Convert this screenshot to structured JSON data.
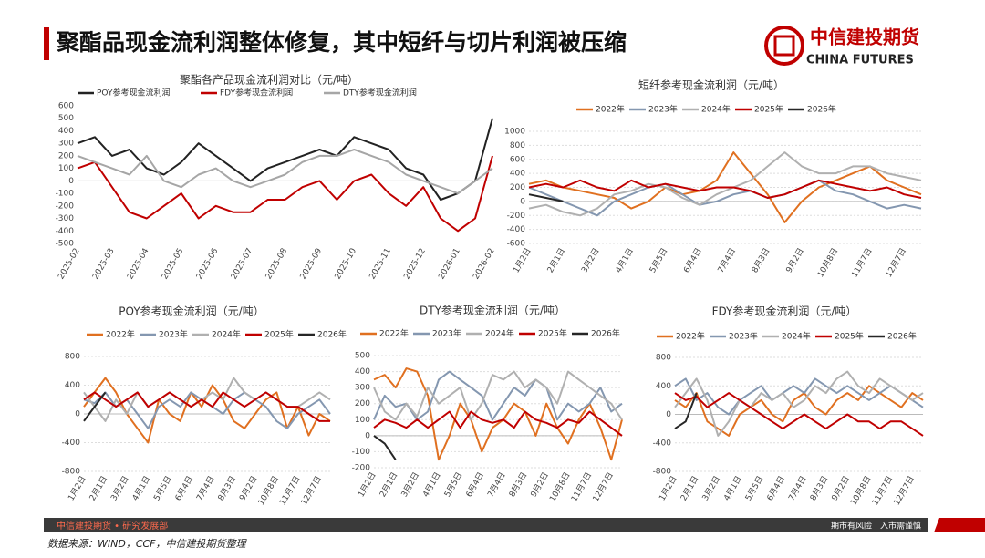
{
  "slide": {
    "title": "聚酯品现金流利润整体修复，其中短纤与切片利润被压缩",
    "logo_cn": "中信建投期货",
    "logo_en": "CHINA FUTURES",
    "footer_left": "中信建投期货 • 研究发展部",
    "footer_right": "期市有风险　入市需谨慎",
    "source": "数据来源：WIND，CCF，中信建投期货整理"
  },
  "chart_data": [
    {
      "type": "line",
      "title": "聚酯各产品现金流利润对比（元/吨）",
      "categories": [
        "2025-02",
        null,
        "2025-03",
        null,
        "2025-04",
        null,
        "2025-05",
        null,
        "2025-06",
        null,
        "2025-07",
        null,
        "2025-08",
        null,
        "2025-09",
        null,
        "2025-10",
        null,
        "2025-11",
        null,
        "2025-12",
        null,
        "2026-01",
        null,
        "2026-02"
      ],
      "series": [
        {
          "name": "POY参考现金流利润",
          "color": "#222222",
          "values": [
            300,
            350,
            200,
            250,
            100,
            50,
            150,
            300,
            200,
            100,
            0,
            100,
            150,
            200,
            250,
            200,
            350,
            300,
            250,
            100,
            50,
            -150,
            -100,
            0,
            500
          ]
        },
        {
          "name": "FDY参考现金流利润",
          "color": "#c00000",
          "values": [
            100,
            150,
            -50,
            -250,
            -300,
            -200,
            -100,
            -300,
            -200,
            -250,
            -250,
            -150,
            -150,
            -50,
            0,
            -150,
            0,
            50,
            -100,
            -200,
            -50,
            -300,
            -400,
            -300,
            200
          ]
        },
        {
          "name": "DTY参考现金流利润",
          "color": "#a6a6a6",
          "values": [
            200,
            150,
            100,
            50,
            200,
            0,
            -50,
            50,
            100,
            0,
            -50,
            0,
            50,
            150,
            200,
            200,
            250,
            200,
            150,
            50,
            0,
            -50,
            -100,
            0,
            100
          ]
        }
      ],
      "ylim": [
        -500,
        600
      ],
      "yticks": [
        -500,
        -400,
        -300,
        -200,
        -100,
        0,
        100,
        200,
        300,
        400,
        500,
        600
      ],
      "grid": false
    },
    {
      "type": "line",
      "title": "短纤参考现金流利润（元/吨）",
      "categories": [
        "1月2日",
        null,
        "2月1日",
        null,
        "3月2日",
        null,
        "4月1日",
        null,
        "5月5日",
        null,
        "6月4日",
        null,
        "7月4日",
        null,
        "8月3日",
        null,
        "9月2日",
        null,
        "10月8日",
        null,
        "11月7日",
        null,
        "12月7日",
        null
      ],
      "series": [
        {
          "name": "2022年",
          "color": "#e07020",
          "values": [
            250,
            300,
            200,
            150,
            100,
            50,
            -100,
            0,
            200,
            100,
            150,
            300,
            700,
            400,
            100,
            -300,
            0,
            200,
            300,
            400,
            500,
            300,
            200,
            100
          ]
        },
        {
          "name": "2023年",
          "color": "#8497b0",
          "values": [
            200,
            100,
            0,
            -100,
            -200,
            0,
            100,
            200,
            250,
            100,
            -50,
            0,
            100,
            150,
            50,
            100,
            200,
            300,
            150,
            100,
            0,
            -100,
            -50,
            -100
          ]
        },
        {
          "name": "2024年",
          "color": "#b0b0b0",
          "values": [
            -100,
            -50,
            -150,
            -200,
            -100,
            100,
            150,
            250,
            200,
            50,
            -50,
            100,
            200,
            300,
            500,
            700,
            500,
            400,
            400,
            500,
            500,
            400,
            350,
            300
          ]
        },
        {
          "name": "2025年",
          "color": "#c00000",
          "values": [
            200,
            250,
            200,
            300,
            200,
            150,
            300,
            200,
            250,
            200,
            150,
            200,
            200,
            150,
            50,
            100,
            200,
            300,
            250,
            200,
            150,
            200,
            100,
            50
          ]
        },
        {
          "name": "2026年",
          "color": "#262626",
          "values": [
            100,
            50,
            0,
            null,
            null,
            null,
            null,
            null,
            null,
            null,
            null,
            null,
            null,
            null,
            null,
            null,
            null,
            null,
            null,
            null,
            null,
            null,
            null,
            null
          ]
        }
      ],
      "ylim": [
        -600,
        1000
      ],
      "yticks": [
        -600,
        -400,
        -200,
        0,
        200,
        400,
        600,
        800,
        1000
      ],
      "grid": true
    },
    {
      "type": "line",
      "title": "POY参考现金流利润（元/吨）",
      "categories": [
        "1月2日",
        null,
        "2月1日",
        null,
        "3月2日",
        null,
        "4月1日",
        null,
        "5月5日",
        null,
        "6月4日",
        null,
        "7月4日",
        null,
        "8月3日",
        null,
        "9月2日",
        null,
        "10月8日",
        null,
        "11月7日",
        null,
        "12月7日",
        null
      ],
      "series": [
        {
          "name": "2022年",
          "color": "#e07020",
          "values": [
            100,
            300,
            500,
            300,
            0,
            -200,
            -400,
            200,
            0,
            -100,
            300,
            100,
            400,
            200,
            -100,
            -200,
            0,
            200,
            300,
            -200,
            100,
            -300,
            0,
            -100
          ]
        },
        {
          "name": "2023年",
          "color": "#8497b0",
          "values": [
            200,
            150,
            300,
            100,
            200,
            0,
            -200,
            100,
            200,
            100,
            300,
            200,
            100,
            0,
            200,
            300,
            200,
            100,
            -100,
            -200,
            0,
            100,
            200,
            0
          ]
        },
        {
          "name": "2024年",
          "color": "#b0b0b0",
          "values": [
            300,
            100,
            -100,
            200,
            0,
            300,
            100,
            200,
            300,
            200,
            100,
            200,
            300,
            200,
            500,
            300,
            200,
            300,
            200,
            100,
            100,
            200,
            300,
            200
          ]
        },
        {
          "name": "2025年",
          "color": "#c00000",
          "values": [
            200,
            300,
            200,
            100,
            200,
            300,
            100,
            200,
            300,
            200,
            100,
            200,
            100,
            300,
            200,
            100,
            200,
            300,
            200,
            100,
            100,
            0,
            -100,
            -100
          ]
        },
        {
          "name": "2026年",
          "color": "#262626",
          "values": [
            -100,
            100,
            300,
            null,
            null,
            null,
            null,
            null,
            null,
            null,
            null,
            null,
            null,
            null,
            null,
            null,
            null,
            null,
            null,
            null,
            null,
            null,
            null,
            null
          ]
        }
      ],
      "ylim": [
        -800,
        800
      ],
      "yticks": [
        -800,
        -400,
        0,
        400,
        800
      ],
      "grid": true
    },
    {
      "type": "line",
      "title": "DTY参考现金流利润（元/吨）",
      "categories": [
        "1月2日",
        null,
        "2月1日",
        null,
        "3月2日",
        null,
        "4月1日",
        null,
        "5月5日",
        null,
        "6月4日",
        null,
        "7月4日",
        null,
        "8月3日",
        null,
        "9月2日",
        null,
        "10月8日",
        null,
        "11月7日",
        null,
        "12月7日",
        null
      ],
      "series": [
        {
          "name": "2022年",
          "color": "#e07020",
          "values": [
            350,
            380,
            300,
            420,
            400,
            250,
            -150,
            0,
            200,
            100,
            -100,
            50,
            100,
            200,
            150,
            0,
            200,
            50,
            -50,
            100,
            200,
            50,
            -150,
            100
          ]
        },
        {
          "name": "2023年",
          "color": "#8497b0",
          "values": [
            100,
            250,
            180,
            200,
            100,
            150,
            350,
            400,
            350,
            300,
            250,
            100,
            200,
            300,
            250,
            350,
            300,
            100,
            200,
            150,
            200,
            300,
            150,
            200
          ]
        },
        {
          "name": "2024年",
          "color": "#b0b0b0",
          "values": [
            300,
            150,
            100,
            200,
            120,
            300,
            200,
            250,
            300,
            100,
            200,
            380,
            350,
            400,
            300,
            350,
            300,
            200,
            400,
            350,
            300,
            250,
            200,
            100
          ]
        },
        {
          "name": "2025年",
          "color": "#c00000",
          "values": [
            50,
            100,
            80,
            50,
            100,
            50,
            100,
            150,
            50,
            150,
            100,
            80,
            100,
            50,
            150,
            100,
            80,
            50,
            100,
            80,
            150,
            100,
            50,
            0
          ]
        },
        {
          "name": "2026年",
          "color": "#262626",
          "values": [
            0,
            -50,
            -150,
            null,
            null,
            null,
            null,
            null,
            null,
            null,
            null,
            null,
            null,
            null,
            null,
            null,
            null,
            null,
            null,
            null,
            null,
            null,
            null,
            null
          ]
        }
      ],
      "ylim": [
        -200,
        500
      ],
      "yticks": [
        -200,
        -100,
        0,
        100,
        200,
        300,
        400,
        500
      ],
      "grid": true
    },
    {
      "type": "line",
      "title": "FDY参考现金流利润（元/吨）",
      "categories": [
        "1月2日",
        null,
        "2月1日",
        null,
        "3月2日",
        null,
        "4月1日",
        null,
        "5月5日",
        null,
        "6月4日",
        null,
        "7月4日",
        null,
        "8月3日",
        null,
        "9月2日",
        null,
        "10月8日",
        null,
        "11月7日",
        null,
        "12月7日",
        null
      ],
      "series": [
        {
          "name": "2022年",
          "color": "#e07020",
          "values": [
            200,
            100,
            300,
            -100,
            -200,
            -300,
            0,
            100,
            200,
            0,
            -100,
            200,
            300,
            100,
            0,
            200,
            300,
            200,
            400,
            300,
            200,
            100,
            300,
            200
          ]
        },
        {
          "name": "2023年",
          "color": "#8497b0",
          "values": [
            400,
            500,
            200,
            300,
            100,
            0,
            200,
            300,
            400,
            200,
            300,
            400,
            300,
            500,
            400,
            300,
            400,
            300,
            200,
            300,
            400,
            300,
            200,
            100
          ]
        },
        {
          "name": "2024年",
          "color": "#b0b0b0",
          "values": [
            100,
            300,
            500,
            200,
            -300,
            -100,
            200,
            100,
            300,
            200,
            300,
            100,
            200,
            400,
            300,
            500,
            600,
            400,
            300,
            500,
            400,
            300,
            200,
            300
          ]
        },
        {
          "name": "2025年",
          "color": "#c00000",
          "values": [
            300,
            200,
            250,
            100,
            200,
            300,
            200,
            100,
            0,
            -100,
            -200,
            -100,
            0,
            -100,
            -200,
            -100,
            0,
            -100,
            -100,
            -200,
            -100,
            -100,
            -200,
            -300
          ]
        },
        {
          "name": "2026年",
          "color": "#262626",
          "values": [
            -200,
            -100,
            300,
            null,
            null,
            null,
            null,
            null,
            null,
            null,
            null,
            null,
            null,
            null,
            null,
            null,
            null,
            null,
            null,
            null,
            null,
            null,
            null,
            null
          ]
        }
      ],
      "ylim": [
        -800,
        800
      ],
      "yticks": [
        -800,
        -400,
        0,
        400,
        800
      ],
      "grid": true
    }
  ]
}
